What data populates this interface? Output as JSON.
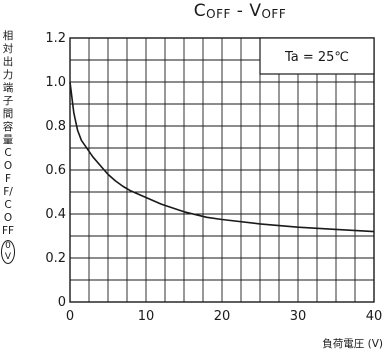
{
  "chart_data": {
    "type": "line",
    "title": "COFF - VOFF",
    "title_parts": {
      "c": "C",
      "c_sub": "OFF",
      "sep": " - ",
      "v": "V",
      "v_sub": "OFF"
    },
    "ylabel_text": "相対出力端子間容量COFF/COFF",
    "ylabel_unit": "0V",
    "xlabel": "負荷電圧 (V)",
    "annotation": "Ta = 25℃",
    "xlim": [
      0,
      40
    ],
    "ylim": [
      0,
      1.2
    ],
    "x_ticks": [
      0,
      10,
      20,
      30,
      40
    ],
    "y_ticks": [
      0,
      0.2,
      0.4,
      0.6,
      0.8,
      1.0,
      1.2
    ],
    "x_tick_labels": [
      "0",
      "10",
      "20",
      "30",
      "40"
    ],
    "y_tick_labels": [
      "0",
      "0.2",
      "0.4",
      "0.6",
      "0.8",
      "1.0",
      "1.2"
    ],
    "grid": true,
    "series": [
      {
        "values_x": [
          0,
          0.25,
          0.5,
          1,
          1.5,
          2,
          3,
          4,
          5,
          6,
          7,
          8,
          10,
          12,
          15,
          18,
          20,
          25,
          30,
          35,
          40
        ],
        "values_y": [
          1.0,
          0.93,
          0.86,
          0.78,
          0.735,
          0.71,
          0.66,
          0.62,
          0.58,
          0.55,
          0.525,
          0.505,
          0.475,
          0.445,
          0.41,
          0.385,
          0.375,
          0.355,
          0.34,
          0.33,
          0.32
        ]
      }
    ],
    "colors": {
      "line": "#1a1a1a",
      "grid": "#1a1a1a",
      "background": "#ffffff"
    }
  }
}
